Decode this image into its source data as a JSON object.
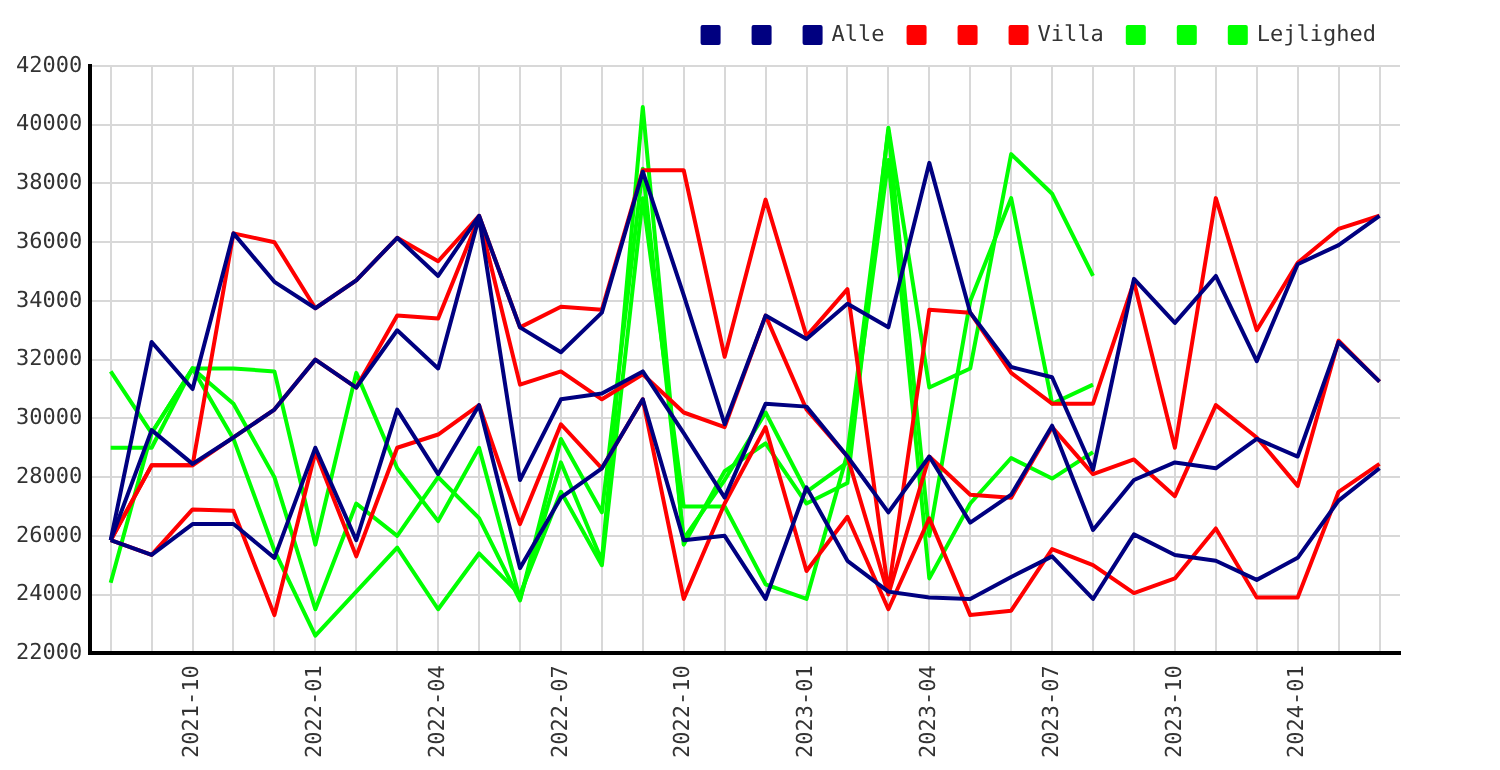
{
  "chart_data": {
    "type": "line",
    "categories": [
      null,
      null,
      "2021-10",
      null,
      null,
      "2022-01",
      null,
      null,
      "2022-04",
      null,
      null,
      "2022-07",
      null,
      null,
      "2022-10",
      null,
      null,
      "2023-01",
      null,
      null,
      "2023-04",
      null,
      null,
      "2023-07",
      null,
      null,
      "2023-10",
      null,
      null,
      "2024-01",
      null,
      null
    ],
    "series": [
      {
        "color": "#000080",
        "values": [
          25850,
          32600,
          31000,
          36300,
          34650,
          33750,
          34700,
          36150,
          34850,
          36900,
          33100,
          32250,
          33600,
          38400,
          34200,
          29800,
          33500,
          32700,
          33900,
          33100,
          38700,
          33600,
          31750,
          31400,
          28250,
          34750,
          33250,
          34850,
          31950,
          35250,
          35900,
          36900
        ]
      },
      {
        "color": "#000080",
        "values": [
          25850,
          29600,
          28450,
          29350,
          30300,
          32000,
          31050,
          33000,
          31700,
          36850,
          27900,
          30650,
          30850,
          31600,
          29500,
          27300,
          30500,
          30400,
          28700,
          26800,
          28700,
          26450,
          27400,
          29750,
          26200,
          27900,
          28500,
          28300,
          29300,
          28700,
          32600,
          31250
        ]
      },
      {
        "name": "Alle",
        "color": "#000080",
        "values": [
          25850,
          25350,
          26400,
          26400,
          25250,
          29000,
          25850,
          30300,
          28100,
          30450,
          24900,
          27300,
          28300,
          30650,
          25850,
          26000,
          23850,
          27650,
          25150,
          24100,
          23900,
          23850,
          24600,
          25300,
          23850,
          26050,
          25350,
          25150,
          24500,
          25250,
          27200,
          28300
        ]
      },
      {
        "color": "#ff0000",
        "values": [
          25850,
          28400,
          28400,
          36300,
          36000,
          33750,
          34700,
          36150,
          35350,
          36900,
          33100,
          33800,
          33700,
          38450,
          38450,
          32100,
          37450,
          32800,
          34400,
          24100,
          33700,
          33600,
          31550,
          30500,
          30500,
          34650,
          29000,
          37500,
          33000,
          35300,
          36450,
          36900
        ]
      },
      {
        "color": "#ff0000",
        "values": [
          25850,
          28400,
          28400,
          29350,
          30300,
          32000,
          31050,
          33500,
          33400,
          36850,
          31150,
          31600,
          30650,
          31500,
          30200,
          29700,
          33500,
          30300,
          28700,
          24000,
          28700,
          27400,
          27300,
          29700,
          28100,
          28600,
          27350,
          30450,
          29350,
          27700,
          32650,
          31250
        ]
      },
      {
        "name": "Villa",
        "color": "#ff0000",
        "values": [
          25850,
          25350,
          26900,
          26850,
          23300,
          28850,
          25300,
          29000,
          29450,
          30450,
          26400,
          29800,
          28300,
          30650,
          23850,
          27100,
          29700,
          24800,
          26650,
          23500,
          26600,
          23300,
          23450,
          25550,
          25000,
          24050,
          24550,
          26250,
          23900,
          23900,
          27500,
          28450
        ]
      },
      {
        "color": "#00ff00",
        "values": [
          31600,
          29500,
          31700,
          31700,
          31600,
          25700,
          31550,
          28300,
          26500,
          29000,
          23850,
          28500,
          25150,
          40600,
          25700,
          28200,
          29150,
          27100,
          27800,
          39900,
          31050,
          31700,
          39000,
          37650,
          34850,
          null,
          null,
          null,
          null,
          null,
          null,
          null
        ]
      },
      {
        "color": "#00ff00",
        "values": [
          29000,
          29000,
          31700,
          30500,
          28000,
          23500,
          27100,
          26000,
          28000,
          26600,
          23800,
          29300,
          26800,
          38500,
          25900,
          27900,
          30200,
          27500,
          28500,
          38800,
          24550,
          27100,
          28650,
          27950,
          28850,
          null,
          null,
          null,
          null,
          null,
          null,
          null
        ]
      },
      {
        "name": "Lejlighed",
        "color": "#00ff00",
        "values": [
          24400,
          29500,
          31700,
          29300,
          25500,
          22600,
          24100,
          25600,
          23500,
          25400,
          24000,
          27500,
          25000,
          37500,
          27000,
          27000,
          24350,
          23850,
          28800,
          39800,
          26000,
          34000,
          37500,
          30500,
          31150,
          null,
          null,
          null,
          null,
          null,
          null,
          null
        ]
      }
    ],
    "ylim": [
      22000,
      42000
    ],
    "yticks": [
      22000,
      24000,
      26000,
      28000,
      30000,
      32000,
      34000,
      36000,
      38000,
      40000,
      42000
    ],
    "grid": true,
    "legend": "top right",
    "marker": "none",
    "line_style": "solid"
  }
}
